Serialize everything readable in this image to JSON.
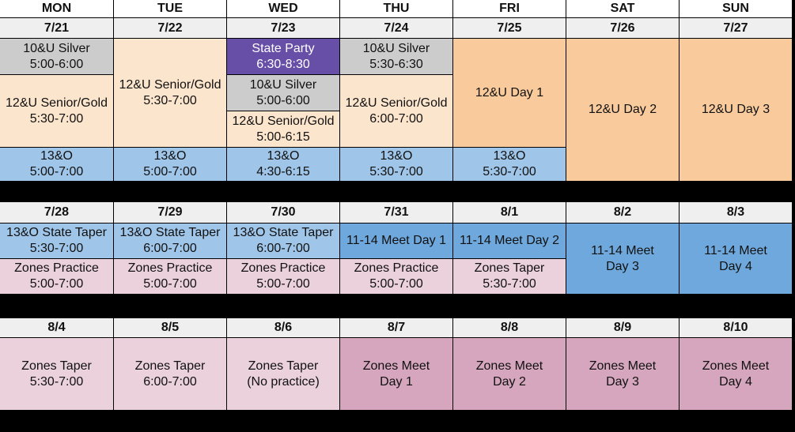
{
  "days": [
    "MON",
    "TUE",
    "WED",
    "THU",
    "FRI",
    "SAT",
    "SUN"
  ],
  "weeks": [
    {
      "dates": [
        "7/21",
        "7/22",
        "7/23",
        "7/24",
        "7/25",
        "7/26",
        "7/27"
      ],
      "events": {
        "mon_silver": "10&U Silver\n5:00-6:00",
        "mon_senior": "12&U Senior/Gold\n5:30-7:00",
        "mon_13o": "13&O\n5:00-7:00",
        "tue_senior": "12&U Senior/Gold\n5:30-7:00",
        "tue_13o": "13&O\n5:00-7:00",
        "wed_party": "State Party\n6:30-8:30",
        "wed_silver": "10&U Silver\n5:00-6:00",
        "wed_senior": "12&U Senior/Gold\n5:00-6:15",
        "wed_13o": "13&O\n4:30-6:15",
        "thu_silver": "10&U Silver\n5:30-6:30",
        "thu_senior": "12&U Senior/Gold\n6:00-7:00",
        "thu_13o": "13&O\n5:30-7:00",
        "fri_day1": "12&U Day 1",
        "fri_13o": "13&O\n5:30-7:00",
        "sat_day2": "12&U Day 2",
        "sun_day3": "12&U Day 3"
      }
    },
    {
      "dates": [
        "7/28",
        "7/29",
        "7/30",
        "7/31",
        "8/1",
        "8/2",
        "8/3"
      ],
      "events": {
        "mon_taper": "13&O State Taper\n5:30-7:00",
        "mon_zones": "Zones Practice\n5:00-7:00",
        "tue_taper": "13&O State Taper\n6:00-7:00",
        "tue_zones": "Zones Practice\n5:00-7:00",
        "wed_taper": "13&O State Taper\n6:00-7:00",
        "wed_zones": "Zones Practice\n5:00-7:00",
        "thu_meet": "11-14 Meet Day 1",
        "thu_zones": "Zones Practice\n5:00-7:00",
        "fri_meet": "11-14 Meet Day 2",
        "fri_zones": "Zones Taper\n5:30-7:00",
        "sat_meet": "11-14 Meet\nDay 3",
        "sun_meet": "11-14 Meet\nDay 4"
      }
    },
    {
      "dates": [
        "8/4",
        "8/5",
        "8/6",
        "8/7",
        "8/8",
        "8/9",
        "8/10"
      ],
      "events": {
        "mon": "Zones Taper\n5:30-7:00",
        "tue": "Zones Taper\n6:00-7:00",
        "wed": "Zones Taper\n(No practice)",
        "thu": "Zones Meet\nDay 1",
        "fri": "Zones Meet\nDay 2",
        "sat": "Zones Meet\nDay 3",
        "sun": "Zones Meet\nDay 4"
      }
    }
  ]
}
